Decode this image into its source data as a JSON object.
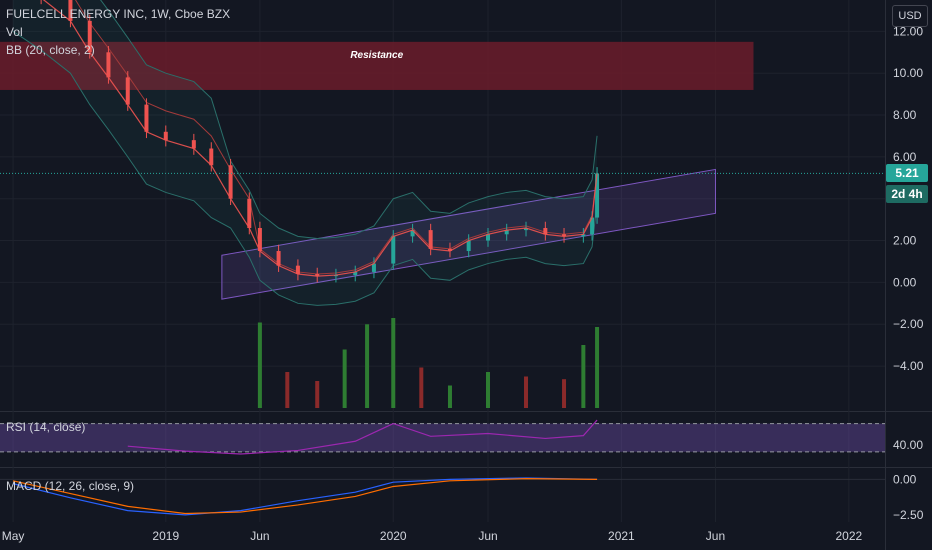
{
  "header": {
    "symbol_line": "FUELCELL ENERGY INC, 1W, Cboe BZX",
    "vol_label": "Vol",
    "bb_label": "BB (20, close, 2)",
    "rsi_label": "RSI (14, close)",
    "macd_label": "MACD (12, 26, close, 9)"
  },
  "currency_button": "USD",
  "last_price": "5.21",
  "countdown": "2d 4h",
  "colors": {
    "background": "#131722",
    "up": "#26a69a",
    "down": "#ef5350",
    "volume_up": "#2e7d32",
    "volume_down": "#8b2a2a",
    "resistance_zone": "#6b1c2a",
    "channel": "#7e57c2",
    "bb_line": "#2a6f6a",
    "ma_line": "#a33a3a",
    "rsi_line": "#9c27b0",
    "macd_line": "#2962ff",
    "signal_line": "#ff6d00",
    "last_price_tag": "#26a69a",
    "countdown_tag": "#1e6b62"
  },
  "chart_data": [
    {
      "type": "candlestick",
      "title": "FUELCELL ENERGY INC, 1W, Cboe BZX",
      "y_ticks": [
        "12.00",
        "10.00",
        "8.00",
        "6.00",
        "4.00",
        "2.00",
        "0.00",
        "−2.00",
        "−4.00"
      ],
      "y_tick_values": [
        12,
        10,
        8,
        6,
        4,
        2,
        0,
        -2,
        -4
      ],
      "ylim": [
        -6.1,
        13.5
      ],
      "x_ticks": [
        "May",
        "2019",
        "Jun",
        "2020",
        "Jun",
        "2021",
        "Jun",
        "2022"
      ],
      "x_tick_dates": [
        "2018-05-01",
        "2019-01-01",
        "2019-06-01",
        "2020-01-01",
        "2020-06-01",
        "2021-01-01",
        "2021-06-01",
        "2022-01-01"
      ],
      "xlim": [
        "2018-04-10",
        "2022-02-28"
      ],
      "last_bar_date": "2020-11-23",
      "last_price": 5.21,
      "close_series": [
        {
          "date": "2018-05-01",
          "close": 14.5
        },
        {
          "date": "2018-06-15",
          "close": 13.6
        },
        {
          "date": "2018-08-01",
          "close": 12.5
        },
        {
          "date": "2018-09-01",
          "close": 11.0
        },
        {
          "date": "2018-10-01",
          "close": 9.8
        },
        {
          "date": "2018-11-01",
          "close": 8.5
        },
        {
          "date": "2018-12-01",
          "close": 7.2
        },
        {
          "date": "2019-01-01",
          "close": 6.8
        },
        {
          "date": "2019-02-15",
          "close": 6.4
        },
        {
          "date": "2019-03-15",
          "close": 5.6
        },
        {
          "date": "2019-04-15",
          "close": 4.0
        },
        {
          "date": "2019-05-15",
          "close": 2.6
        },
        {
          "date": "2019-06-01",
          "close": 1.5
        },
        {
          "date": "2019-07-01",
          "close": 0.8
        },
        {
          "date": "2019-08-01",
          "close": 0.4
        },
        {
          "date": "2019-09-01",
          "close": 0.3
        },
        {
          "date": "2019-10-01",
          "close": 0.35
        },
        {
          "date": "2019-11-01",
          "close": 0.5
        },
        {
          "date": "2019-12-01",
          "close": 0.9
        },
        {
          "date": "2020-01-01",
          "close": 2.2
        },
        {
          "date": "2020-02-01",
          "close": 2.5
        },
        {
          "date": "2020-03-01",
          "close": 1.6
        },
        {
          "date": "2020-04-01",
          "close": 1.5
        },
        {
          "date": "2020-05-01",
          "close": 2.0
        },
        {
          "date": "2020-06-01",
          "close": 2.3
        },
        {
          "date": "2020-07-01",
          "close": 2.5
        },
        {
          "date": "2020-08-01",
          "close": 2.6
        },
        {
          "date": "2020-09-01",
          "close": 2.3
        },
        {
          "date": "2020-10-01",
          "close": 2.2
        },
        {
          "date": "2020-11-01",
          "close": 2.3
        },
        {
          "date": "2020-11-15",
          "close": 3.1
        },
        {
          "date": "2020-11-23",
          "close": 5.21
        }
      ],
      "annotations": [
        {
          "type": "zone",
          "label": "Resistance",
          "y_from": 9.2,
          "y_to": 11.5,
          "from": "2018-04-10",
          "to": "2021-08-01"
        },
        {
          "type": "channel",
          "upper": [
            {
              "date": "2019-04-01",
              "value": 1.3
            },
            {
              "date": "2021-06-01",
              "value": 5.4
            }
          ],
          "lower": [
            {
              "date": "2019-04-01",
              "value": -0.8
            },
            {
              "date": "2021-06-01",
              "value": 3.3
            }
          ]
        }
      ]
    },
    {
      "type": "bar",
      "title": "Vol",
      "volume_bars": [
        {
          "date": "2019-06-01",
          "value": 0.95,
          "dir": "up"
        },
        {
          "date": "2019-07-15",
          "value": 0.4,
          "dir": "down"
        },
        {
          "date": "2019-09-01",
          "value": 0.3,
          "dir": "down"
        },
        {
          "date": "2019-10-15",
          "value": 0.65,
          "dir": "up"
        },
        {
          "date": "2019-11-20",
          "value": 0.93,
          "dir": "up"
        },
        {
          "date": "2020-01-01",
          "value": 1.0,
          "dir": "up"
        },
        {
          "date": "2020-02-15",
          "value": 0.45,
          "dir": "down"
        },
        {
          "date": "2020-04-01",
          "value": 0.25,
          "dir": "up"
        },
        {
          "date": "2020-06-01",
          "value": 0.4,
          "dir": "up"
        },
        {
          "date": "2020-08-01",
          "value": 0.35,
          "dir": "down"
        },
        {
          "date": "2020-10-01",
          "value": 0.32,
          "dir": "down"
        },
        {
          "date": "2020-11-01",
          "value": 0.7,
          "dir": "up"
        },
        {
          "date": "2020-11-23",
          "value": 0.9,
          "dir": "up"
        }
      ]
    },
    {
      "type": "line",
      "title": "RSI (14, close)",
      "y_ticks": [
        "40.00"
      ],
      "y_tick_values": [
        40
      ],
      "ylim": [
        10,
        85
      ],
      "bands": [
        30,
        70
      ],
      "series": [
        {
          "points": [
            {
              "date": "2018-11-01",
              "value": 38
            },
            {
              "date": "2019-02-01",
              "value": 31
            },
            {
              "date": "2019-05-01",
              "value": 27
            },
            {
              "date": "2019-08-01",
              "value": 32
            },
            {
              "date": "2019-11-01",
              "value": 45
            },
            {
              "date": "2020-01-01",
              "value": 70
            },
            {
              "date": "2020-03-01",
              "value": 52
            },
            {
              "date": "2020-06-01",
              "value": 56
            },
            {
              "date": "2020-09-01",
              "value": 49
            },
            {
              "date": "2020-11-01",
              "value": 53
            },
            {
              "date": "2020-11-23",
              "value": 75
            }
          ]
        }
      ]
    },
    {
      "type": "line",
      "title": "MACD (12, 26, close, 9)",
      "y_ticks": [
        "0.00",
        "−2.50"
      ],
      "y_tick_values": [
        0,
        -2.5
      ],
      "ylim": [
        -3.0,
        0.8
      ],
      "series": [
        {
          "points": [
            {
              "date": "2018-05-01",
              "value": -0.3
            },
            {
              "date": "2018-08-01",
              "value": -1.3
            },
            {
              "date": "2018-11-01",
              "value": -2.2
            },
            {
              "date": "2019-02-01",
              "value": -2.5
            },
            {
              "date": "2019-05-01",
              "value": -2.2
            },
            {
              "date": "2019-08-01",
              "value": -1.5
            },
            {
              "date": "2019-11-01",
              "value": -0.9
            },
            {
              "date": "2020-01-01",
              "value": -0.2
            },
            {
              "date": "2020-04-01",
              "value": 0.0
            },
            {
              "date": "2020-08-01",
              "value": 0.1
            },
            {
              "date": "2020-11-23",
              "value": 0.0
            }
          ]
        },
        {
          "points": [
            {
              "date": "2018-05-01",
              "value": -0.1
            },
            {
              "date": "2018-08-01",
              "value": -1.0
            },
            {
              "date": "2018-11-01",
              "value": -1.9
            },
            {
              "date": "2019-02-01",
              "value": -2.4
            },
            {
              "date": "2019-05-01",
              "value": -2.3
            },
            {
              "date": "2019-08-01",
              "value": -1.8
            },
            {
              "date": "2019-11-01",
              "value": -1.2
            },
            {
              "date": "2020-01-01",
              "value": -0.5
            },
            {
              "date": "2020-04-01",
              "value": -0.1
            },
            {
              "date": "2020-08-01",
              "value": 0.05
            },
            {
              "date": "2020-11-23",
              "value": 0.0
            }
          ]
        }
      ]
    }
  ]
}
